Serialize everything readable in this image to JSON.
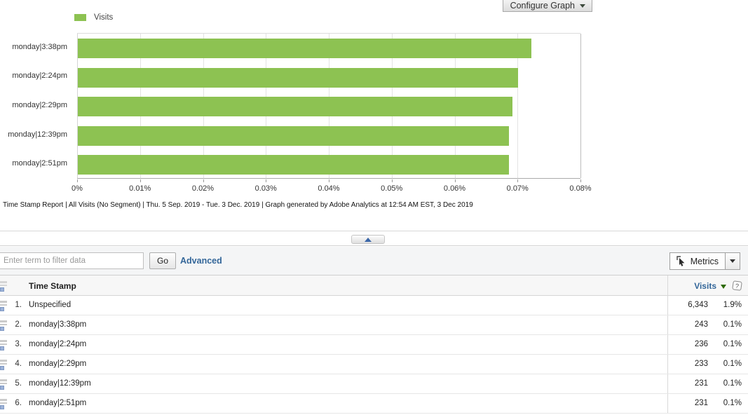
{
  "chart_panel": {
    "configure_button_label": "Configure Graph",
    "legend_label": "Visits",
    "caption": "Time Stamp Report | All Visits (No Segment) | Thu.  5 Sep. 2019 - Tue.  3 Dec. 2019 | Graph generated by Adobe Analytics at 12:54 AM EST,  3 Dec 2019"
  },
  "chart_data": {
    "type": "bar",
    "orientation": "horizontal",
    "title": "",
    "categories": [
      "monday|3:38pm",
      "monday|2:24pm",
      "monday|2:29pm",
      "monday|12:39pm",
      "monday|2:51pm"
    ],
    "series": [
      {
        "name": "Visits",
        "values_pct": [
          0.0722,
          0.0701,
          0.0692,
          0.0686,
          0.0686
        ]
      }
    ],
    "xlabel": "",
    "ylabel": "",
    "xticks": [
      "0%",
      "0.01%",
      "0.02%",
      "0.03%",
      "0.04%",
      "0.05%",
      "0.06%",
      "0.07%",
      "0.08%"
    ],
    "xlim": [
      0,
      0.08
    ],
    "grid": true,
    "legend_position": "top-left",
    "bar_color": "#8DC252"
  },
  "collapse": {
    "tooltip_icon": "triangle-up"
  },
  "filter_bar": {
    "input_value": "",
    "input_placeholder": "Enter term to filter data",
    "go_label": "Go",
    "advanced_label": "Advanced",
    "metrics_label": "Metrics"
  },
  "table": {
    "dimension_header": "Time Stamp",
    "metric_header": "Visits",
    "sort": "descending",
    "rows": [
      {
        "num": "1.",
        "label": "Unspecified",
        "visits": "6,343",
        "pct": "1.9%"
      },
      {
        "num": "2.",
        "label": "monday|3:38pm",
        "visits": "243",
        "pct": "0.1%"
      },
      {
        "num": "3.",
        "label": "monday|2:24pm",
        "visits": "236",
        "pct": "0.1%"
      },
      {
        "num": "4.",
        "label": "monday|2:29pm",
        "visits": "233",
        "pct": "0.1%"
      },
      {
        "num": "5.",
        "label": "monday|12:39pm",
        "visits": "231",
        "pct": "0.1%"
      },
      {
        "num": "6.",
        "label": "monday|2:51pm",
        "visits": "231",
        "pct": "0.1%"
      }
    ],
    "help_icon_glyph": "?"
  },
  "colors": {
    "bar_green": "#8DC252",
    "link_blue": "#336699",
    "sort_arrow_green": "#2d6a00"
  }
}
